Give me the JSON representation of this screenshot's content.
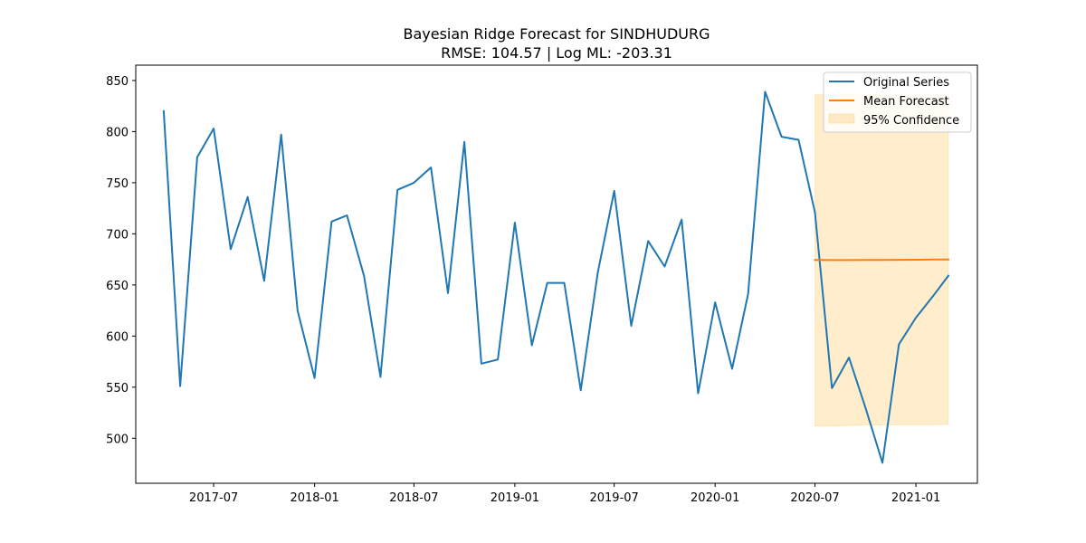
{
  "chart_data": {
    "type": "line",
    "title": "Bayesian Ridge Forecast for SINDHUDURG",
    "subtitle": "RMSE: 104.57 | Log ML: -203.31",
    "xlabel": "",
    "ylabel": "",
    "xlim": [
      "2017-02-09",
      "2021-04-23"
    ],
    "ylim": [
      456,
      865
    ],
    "x_ticks": [
      "2017-07",
      "2018-01",
      "2018-07",
      "2019-01",
      "2019-07",
      "2020-01",
      "2020-07",
      "2021-01"
    ],
    "y_ticks": [
      500,
      550,
      600,
      650,
      700,
      750,
      800,
      850
    ],
    "grid": false,
    "legend_position": "top-right",
    "series": [
      {
        "name": "Original Series",
        "kind": "line",
        "color": "#1f77b4",
        "x": [
          "2017-04-01",
          "2017-05-01",
          "2017-06-01",
          "2017-07-01",
          "2017-08-01",
          "2017-09-01",
          "2017-10-01",
          "2017-11-01",
          "2017-12-01",
          "2018-01-01",
          "2018-02-01",
          "2018-03-01",
          "2018-04-01",
          "2018-05-01",
          "2018-06-01",
          "2018-07-01",
          "2018-08-01",
          "2018-09-01",
          "2018-10-01",
          "2018-11-01",
          "2018-12-01",
          "2019-01-01",
          "2019-02-01",
          "2019-03-01",
          "2019-04-01",
          "2019-05-01",
          "2019-06-01",
          "2019-07-01",
          "2019-08-01",
          "2019-09-01",
          "2019-10-01",
          "2019-11-01",
          "2019-12-01",
          "2020-01-01",
          "2020-02-01",
          "2020-03-01",
          "2020-04-01",
          "2020-05-01",
          "2020-06-01",
          "2020-07-01",
          "2020-08-01",
          "2020-09-01",
          "2020-10-01",
          "2020-11-01",
          "2020-12-01",
          "2021-01-01",
          "2021-02-01",
          "2021-03-01"
        ],
        "y": [
          820,
          551,
          775,
          803,
          685,
          736,
          654,
          797,
          625,
          559,
          712,
          718,
          659,
          560,
          743,
          750,
          765,
          642,
          790,
          573,
          577,
          711,
          591,
          652,
          652,
          547,
          662,
          742,
          610,
          693,
          668,
          714,
          544,
          633,
          568,
          641,
          839,
          795,
          792,
          721,
          549,
          579,
          530,
          476,
          592,
          618,
          639,
          659
        ]
      },
      {
        "name": "Mean Forecast",
        "kind": "line",
        "color": "#ff7f0e",
        "x": [
          "2020-07-01",
          "2020-08-01",
          "2020-09-01",
          "2020-10-01",
          "2020-11-01",
          "2020-12-01",
          "2021-01-01",
          "2021-02-01",
          "2021-03-01"
        ],
        "y": [
          674.5,
          674.3,
          674.3,
          674.4,
          674.5,
          674.6,
          674.7,
          674.8,
          674.9
        ]
      },
      {
        "name": "95% Confidence",
        "kind": "band",
        "color": "#ffa500",
        "opacity": 0.2,
        "x": [
          "2020-07-01",
          "2020-08-01",
          "2020-09-01",
          "2020-10-01",
          "2020-11-01",
          "2020-12-01",
          "2021-01-01",
          "2021-02-01",
          "2021-03-01"
        ],
        "lower": [
          512,
          512,
          512.5,
          513,
          513,
          513.2,
          513.3,
          513.4,
          513.5
        ],
        "upper": [
          836,
          836,
          836,
          836,
          836,
          836,
          836,
          836,
          836
        ]
      }
    ]
  }
}
